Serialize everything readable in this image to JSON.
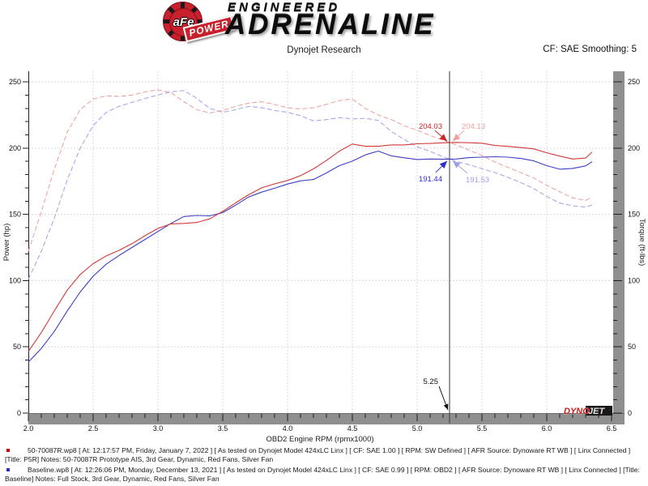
{
  "header": {
    "emblem_text": "aFe",
    "banner_text": "POWER",
    "brand_line1": "ENGINEERED",
    "brand_line2": "ADRENALINE",
    "subtitle": "Dynojet Research",
    "smoothing_label": "CF: SAE Smoothing: 5"
  },
  "chart_data": {
    "type": "line",
    "xlabel": "OBD2 Engine RPM (rpmx1000)",
    "ylabel_left": "Power (hp)",
    "ylabel_right": "Torque (ft-lbs)",
    "xlim": [
      2.0,
      6.5
    ],
    "ylim": [
      0,
      258
    ],
    "x_tick_labels": [
      "2.0",
      "2.5",
      "3.0",
      "3.5",
      "4.0",
      "4.5",
      "5.0",
      "5.5",
      "6.0",
      "6.5"
    ],
    "y_major_ticks": [
      0,
      50,
      100,
      150,
      200,
      250
    ],
    "x_minor_step": 0.1,
    "y_minor_step": 10,
    "grid": true,
    "legend_position": "none",
    "cursor": {
      "x": 5.25,
      "label": "5.25"
    },
    "x": [
      2.0,
      2.1,
      2.2,
      2.3,
      2.4,
      2.5,
      2.6,
      2.7,
      2.8,
      2.9,
      3.0,
      3.1,
      3.2,
      3.3,
      3.4,
      3.5,
      3.6,
      3.7,
      3.8,
      3.9,
      4.0,
      4.1,
      4.2,
      4.3,
      4.4,
      4.5,
      4.6,
      4.7,
      4.8,
      4.9,
      5.0,
      5.1,
      5.2,
      5.3,
      5.4,
      5.5,
      5.6,
      5.7,
      5.8,
      5.9,
      6.0,
      6.1,
      6.2,
      6.3,
      6.35
    ],
    "series": [
      {
        "name": "Baseline Torque",
        "axis": "right",
        "style": "dashed",
        "color": "#a8a8ea",
        "values": [
          101,
          122,
          147,
          176,
          200,
          217,
          227,
          231.5,
          234.5,
          237.5,
          240,
          242.5,
          243.5,
          237.5,
          230,
          227,
          229,
          231.5,
          230.5,
          228.5,
          227,
          224.5,
          220.5,
          221.5,
          223,
          222,
          222.5,
          221,
          212.5,
          206.5,
          201,
          197.5,
          193.5,
          190,
          187.5,
          184.5,
          181.5,
          178,
          174,
          169.5,
          163.5,
          158.5,
          156.5,
          155.5,
          157
        ]
      },
      {
        "name": "P5R Torque",
        "axis": "right",
        "style": "dashed",
        "color": "#eea4a4",
        "values": [
          122,
          152,
          184,
          212,
          229,
          237,
          239.5,
          239,
          240,
          242.5,
          244,
          242,
          235,
          229,
          226.5,
          228.5,
          231.5,
          234,
          235,
          233,
          230.5,
          229.5,
          230.5,
          233,
          236,
          237,
          230,
          225,
          221.5,
          217,
          213.5,
          209.5,
          206,
          202.5,
          198.5,
          194.5,
          189.5,
          185.5,
          181.5,
          177.5,
          172,
          167,
          162.5,
          160.5,
          163
        ]
      },
      {
        "name": "Baseline Power",
        "axis": "left",
        "style": "solid",
        "color": "#3e3ec8",
        "values": [
          38.5,
          48.8,
          61.6,
          77.1,
          91.4,
          103.3,
          112.4,
          119.0,
          125.0,
          131.1,
          137.1,
          143.1,
          148.4,
          149.2,
          148.9,
          151.3,
          157.0,
          163.1,
          166.8,
          169.7,
          172.9,
          175.3,
          176.3,
          181.3,
          186.8,
          190.2,
          194.9,
          197.8,
          194.2,
          192.7,
          191.4,
          191.8,
          191.6,
          191.8,
          192.8,
          193.2,
          193.5,
          193.2,
          192.2,
          190.4,
          186.8,
          184.1,
          184.7,
          186.6,
          189.8
        ]
      },
      {
        "name": "P5R Power",
        "axis": "left",
        "style": "solid",
        "color": "#d23838",
        "values": [
          46.5,
          60.8,
          77.1,
          92.8,
          104.6,
          112.8,
          118.6,
          122.9,
          127.9,
          133.9,
          139.4,
          142.8,
          143.2,
          143.9,
          146.6,
          152.3,
          158.7,
          164.8,
          170.0,
          173.0,
          175.6,
          179.2,
          184.3,
          190.7,
          197.7,
          203.1,
          201.4,
          201.4,
          202.4,
          202.4,
          203.3,
          203.5,
          204.0,
          204.3,
          204.1,
          203.7,
          202.0,
          201.3,
          200.4,
          199.4,
          196.5,
          194.0,
          191.8,
          192.5,
          197.1
        ]
      }
    ],
    "callouts": [
      {
        "text": "204.03",
        "value": 204.03,
        "color": "#cc2626"
      },
      {
        "text": "204.13",
        "value": 204.13,
        "color": "#ef9f9f"
      },
      {
        "text": "191.44",
        "value": 191.44,
        "color": "#2d2dcc"
      },
      {
        "text": "191.53",
        "value": 191.53,
        "color": "#9f9fe8"
      }
    ],
    "watermark": {
      "text_red": "DYNO",
      "text_dark": "JET"
    }
  },
  "footer": {
    "runs": [
      {
        "bullet_color": "#cc0000",
        "text": "50-70087R.wp8 [ At: 12:17:57 PM, Friday, January 7, 2022 ] [ As tested on Dynojet Model 424xLC Linx ] [ CF: SAE 1.00 ] [ RPM: SW Defined ] [ AFR Source: Dynoware RT WB ] [ Linx Connected ] [Title: P5R]  Notes: 50-70087R Prototype AIS, 3rd Gear, Dynamic, Red Fans, Silver Fan"
      },
      {
        "bullet_color": "#2b2bc0",
        "text": "Baseline.wp8 [ At: 12:26:06 PM, Monday, December 13, 2021 ] [ As tested on Dynojet Model 424xLC Linx ] [ CF: SAE 0.99 ] [ RPM: OBD2 ] [ AFR Source: Dynoware RT WB ] [ Linx Connected ] [Title: Baseline]  Notes: Full Stock, 3rd Gear, Dynamic, Red Fans, Silver Fan"
      }
    ]
  }
}
